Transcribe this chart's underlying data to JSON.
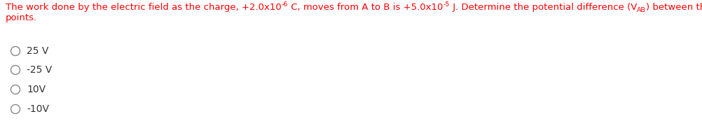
{
  "part1": "The work done by the electric field as the charge, +2.0x10",
  "sup1": "-6",
  "part2": " C, moves from A to B is +5.0x10",
  "sup2": "-5",
  "part3": " J. Determine the potential difference (V",
  "sub1": "AB",
  "part4": ") between these",
  "line2": "points.",
  "options": [
    "25 V",
    "-25 V",
    "10V",
    "-10V"
  ],
  "text_color": "#FF0000",
  "option_color": "#333333",
  "bg_color": "#FFFFFF",
  "font_size": 9.5,
  "option_font_size": 10.0,
  "figwidth": 10.03,
  "figheight": 1.83,
  "dpi": 100
}
